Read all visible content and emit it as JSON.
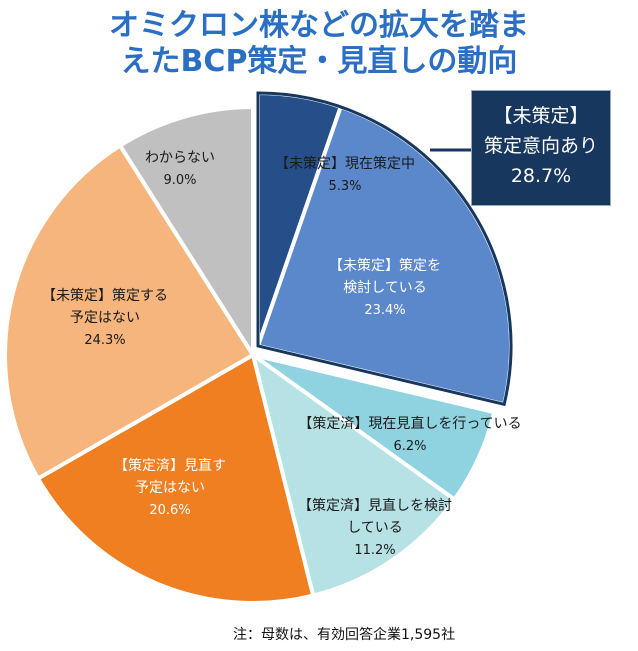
{
  "title": {
    "line1": "オミクロン株などの拡大を踏ま",
    "line2": "えたBCP策定・見直しの動向"
  },
  "note": "注：母数は、有効回答企業1,595社",
  "callout": {
    "line1": "【未策定】",
    "line2": "策定意向あり",
    "value": "28.7%",
    "bg": "#17375e"
  },
  "chart_data": {
    "type": "pie",
    "start_angle_deg": 0,
    "direction": "clockwise",
    "slices": [
      {
        "label_lines": [
          "【未策定】現在策定中"
        ],
        "value": 5.3,
        "value_label": "5.3%",
        "color": "#264f8a",
        "exploded": true,
        "text_color": "#1a1a1a"
      },
      {
        "label_lines": [
          "【未策定】策定を",
          "検討している"
        ],
        "value": 23.4,
        "value_label": "23.4%",
        "color": "#5b87cb",
        "exploded": true,
        "text_color": "#ffffff"
      },
      {
        "label_lines": [
          "【策定済】現在見直しを行っている"
        ],
        "value": 6.2,
        "value_label": "6.2%",
        "color": "#8fd3e0",
        "exploded": false,
        "text_color": "#1a1a1a"
      },
      {
        "label_lines": [
          "【策定済】見直しを検討",
          "している"
        ],
        "value": 11.2,
        "value_label": "11.2%",
        "color": "#b7e2e5",
        "exploded": false,
        "text_color": "#1a1a1a"
      },
      {
        "label_lines": [
          "【策定済】見直す",
          "予定はない"
        ],
        "value": 20.6,
        "value_label": "20.6%",
        "color": "#f07f22",
        "exploded": false,
        "text_color": "#ffffff"
      },
      {
        "label_lines": [
          "【未策定】策定する",
          "予定はない"
        ],
        "value": 24.3,
        "value_label": "24.3%",
        "color": "#f5b57c",
        "exploded": false,
        "text_color": "#1a1a1a"
      },
      {
        "label_lines": [
          "わからない"
        ],
        "value": 9.0,
        "value_label": "9.0%",
        "color": "#c0c0c0",
        "exploded": false,
        "text_color": "#1a1a1a"
      }
    ]
  }
}
